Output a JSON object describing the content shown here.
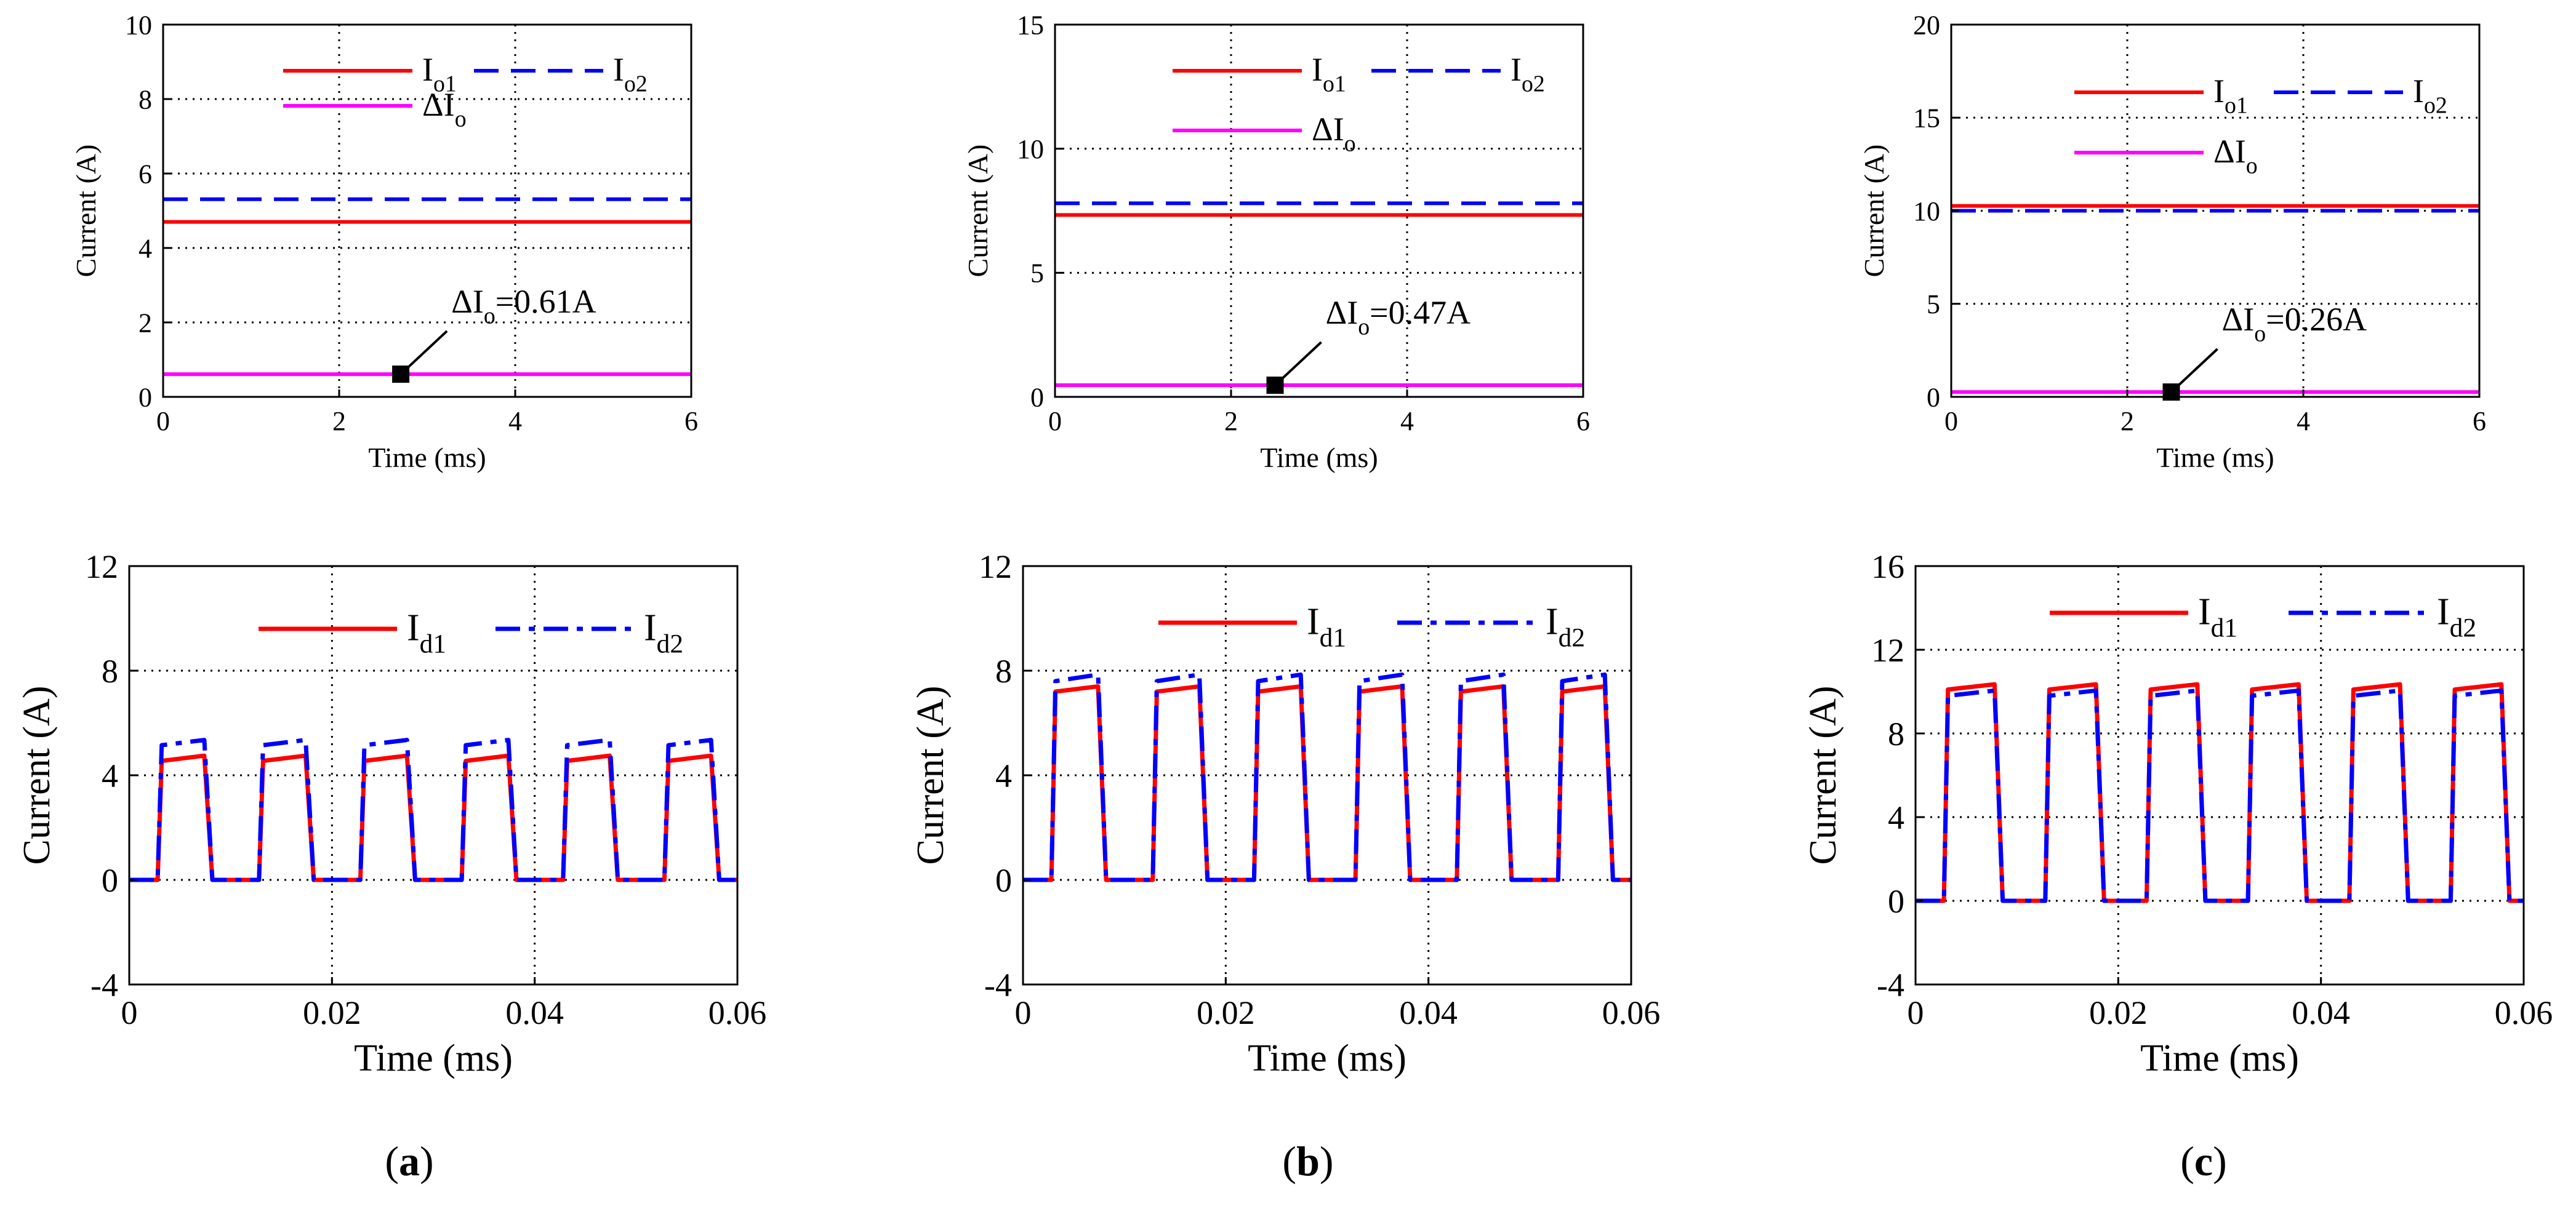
{
  "colors": {
    "red": "#ff0000",
    "blue": "#0000ff",
    "magenta": "#ff00ff",
    "grid": "#000000",
    "frame": "#000000"
  },
  "panel_labels": [
    {
      "open": "(",
      "letter": "a",
      "close": ")"
    },
    {
      "open": "(",
      "letter": "b",
      "close": ")"
    },
    {
      "open": "(",
      "letter": "c",
      "close": ")"
    }
  ],
  "chart_data": [
    {
      "id": "a-top",
      "type": "line",
      "xlabel": "Time (ms)",
      "ylabel": "Current (A)",
      "xlim": [
        0,
        6
      ],
      "ylim": [
        0,
        10
      ],
      "xticks": [
        "0",
        "2",
        "4",
        "6"
      ],
      "xtick_values": [
        0,
        2,
        4,
        6
      ],
      "yticks": [
        "0",
        "2",
        "4",
        "6",
        "8",
        "10"
      ],
      "ytick_values": [
        0,
        2,
        4,
        6,
        8,
        10
      ],
      "series": [
        {
          "name": "Io1",
          "main": "I",
          "sub": "o1",
          "style": "solid",
          "color": "#ff0000",
          "x": [
            0,
            6
          ],
          "y": [
            4.7,
            4.7
          ]
        },
        {
          "name": "Io2",
          "main": "I",
          "sub": "o2",
          "style": "dashed",
          "color": "#0000ff",
          "x": [
            0,
            6
          ],
          "y": [
            5.31,
            5.31
          ]
        },
        {
          "name": "ΔIo",
          "main": "ΔI",
          "sub": "o",
          "style": "solid",
          "color": "#ff00ff",
          "x": [
            0,
            6
          ],
          "y": [
            0.61,
            0.61
          ]
        }
      ],
      "annotation": {
        "main": "ΔI",
        "sub": "o",
        "text": "=0.61A",
        "x": 2.7,
        "y": 0.61
      }
    },
    {
      "id": "b-top",
      "type": "line",
      "xlabel": "Time (ms)",
      "ylabel": "Current (A)",
      "xlim": [
        0,
        6
      ],
      "ylim": [
        0,
        15
      ],
      "xticks": [
        "0",
        "2",
        "4",
        "6"
      ],
      "xtick_values": [
        0,
        2,
        4,
        6
      ],
      "yticks": [
        "0",
        "5",
        "10",
        "15"
      ],
      "ytick_values": [
        0,
        5,
        10,
        15
      ],
      "series": [
        {
          "name": "Io1",
          "main": "I",
          "sub": "o1",
          "style": "solid",
          "color": "#ff0000",
          "x": [
            0,
            6
          ],
          "y": [
            7.33,
            7.33
          ]
        },
        {
          "name": "Io2",
          "main": "I",
          "sub": "o2",
          "style": "dashed",
          "color": "#0000ff",
          "x": [
            0,
            6
          ],
          "y": [
            7.8,
            7.8
          ]
        },
        {
          "name": "ΔIo",
          "main": "ΔI",
          "sub": "o",
          "style": "solid",
          "color": "#ff00ff",
          "x": [
            0,
            6
          ],
          "y": [
            0.47,
            0.47
          ]
        }
      ],
      "annotation": {
        "main": "ΔI",
        "sub": "o",
        "text": "=0.47A",
        "x": 2.5,
        "y": 0.47
      }
    },
    {
      "id": "c-top",
      "type": "line",
      "xlabel": "Time (ms)",
      "ylabel": "Current (A)",
      "xlim": [
        0,
        6
      ],
      "ylim": [
        0,
        20
      ],
      "xticks": [
        "0",
        "2",
        "4",
        "6"
      ],
      "xtick_values": [
        0,
        2,
        4,
        6
      ],
      "yticks": [
        "0",
        "5",
        "10",
        "15",
        "20"
      ],
      "ytick_values": [
        0,
        5,
        10,
        15,
        20
      ],
      "series": [
        {
          "name": "Io1",
          "main": "I",
          "sub": "o1",
          "style": "solid",
          "color": "#ff0000",
          "x": [
            0,
            6
          ],
          "y": [
            10.26,
            10.26
          ]
        },
        {
          "name": "Io2",
          "main": "I",
          "sub": "o2",
          "style": "dashed",
          "color": "#0000ff",
          "x": [
            0,
            6
          ],
          "y": [
            10.0,
            10.0
          ]
        },
        {
          "name": "ΔIo",
          "main": "ΔI",
          "sub": "o",
          "style": "solid",
          "color": "#ff00ff",
          "x": [
            0,
            6
          ],
          "y": [
            0.26,
            0.26
          ]
        }
      ],
      "annotation": {
        "main": "ΔI",
        "sub": "o",
        "text": "=0.26A",
        "x": 2.5,
        "y": 0.26
      }
    },
    {
      "id": "a-bottom",
      "type": "line",
      "xlabel": "Time (ms)",
      "ylabel": "Current (A)",
      "xlim": [
        0,
        0.06
      ],
      "ylim": [
        -4,
        12
      ],
      "xticks": [
        "0",
        "0.02",
        "0.04",
        "0.06"
      ],
      "xtick_values": [
        0,
        0.02,
        0.04,
        0.06
      ],
      "yticks": [
        "-4",
        "0",
        "4",
        "8",
        "12"
      ],
      "ytick_values": [
        -4,
        0,
        4,
        8,
        12
      ],
      "period": 0.01,
      "pulse_start": 0.0028,
      "pulse_width": 0.0048,
      "rise": 0.0004,
      "fall": 0.0008,
      "series": [
        {
          "name": "Id1",
          "main": "I",
          "sub": "d1",
          "style": "solid",
          "color": "#ff0000",
          "level_start": 4.55,
          "level_end": 4.75
        },
        {
          "name": "Id2",
          "main": "I",
          "sub": "d2",
          "style": "dashdot",
          "color": "#0000ff",
          "level_start": 5.15,
          "level_end": 5.35
        }
      ]
    },
    {
      "id": "b-bottom",
      "type": "line",
      "xlabel": "Time (ms)",
      "ylabel": "Current (A)",
      "xlim": [
        0,
        0.06
      ],
      "ylim": [
        -4,
        12
      ],
      "xticks": [
        "0",
        "0.02",
        "0.04",
        "0.06"
      ],
      "xtick_values": [
        0,
        0.02,
        0.04,
        0.06
      ],
      "yticks": [
        "-4",
        "0",
        "4",
        "8",
        "12"
      ],
      "ytick_values": [
        -4,
        0,
        4,
        8,
        12
      ],
      "period": 0.01,
      "pulse_start": 0.0028,
      "pulse_width": 0.0048,
      "rise": 0.0004,
      "fall": 0.0008,
      "series": [
        {
          "name": "Id1",
          "main": "I",
          "sub": "d1",
          "style": "solid",
          "color": "#ff0000",
          "level_start": 7.2,
          "level_end": 7.4
        },
        {
          "name": "Id2",
          "main": "I",
          "sub": "d2",
          "style": "dashdot",
          "color": "#0000ff",
          "level_start": 7.6,
          "level_end": 7.85
        }
      ]
    },
    {
      "id": "c-bottom",
      "type": "line",
      "xlabel": "Time (ms)",
      "ylabel": "Current (A)",
      "xlim": [
        0,
        0.06
      ],
      "ylim": [
        -4,
        16
      ],
      "xticks": [
        "0",
        "0.02",
        "0.04",
        "0.06"
      ],
      "xtick_values": [
        0,
        0.02,
        0.04,
        0.06
      ],
      "yticks": [
        "-4",
        "0",
        "4",
        "8",
        "12",
        "16"
      ],
      "ytick_values": [
        -4,
        0,
        4,
        8,
        12,
        16
      ],
      "period": 0.01,
      "pulse_start": 0.0028,
      "pulse_width": 0.0052,
      "rise": 0.0004,
      "fall": 0.0008,
      "series": [
        {
          "name": "Id1",
          "main": "I",
          "sub": "d1",
          "style": "solid",
          "color": "#ff0000",
          "level_start": 10.1,
          "level_end": 10.35
        },
        {
          "name": "Id2",
          "main": "I",
          "sub": "d2",
          "style": "dashdot",
          "color": "#0000ff",
          "level_start": 9.8,
          "level_end": 10.05
        }
      ]
    }
  ]
}
